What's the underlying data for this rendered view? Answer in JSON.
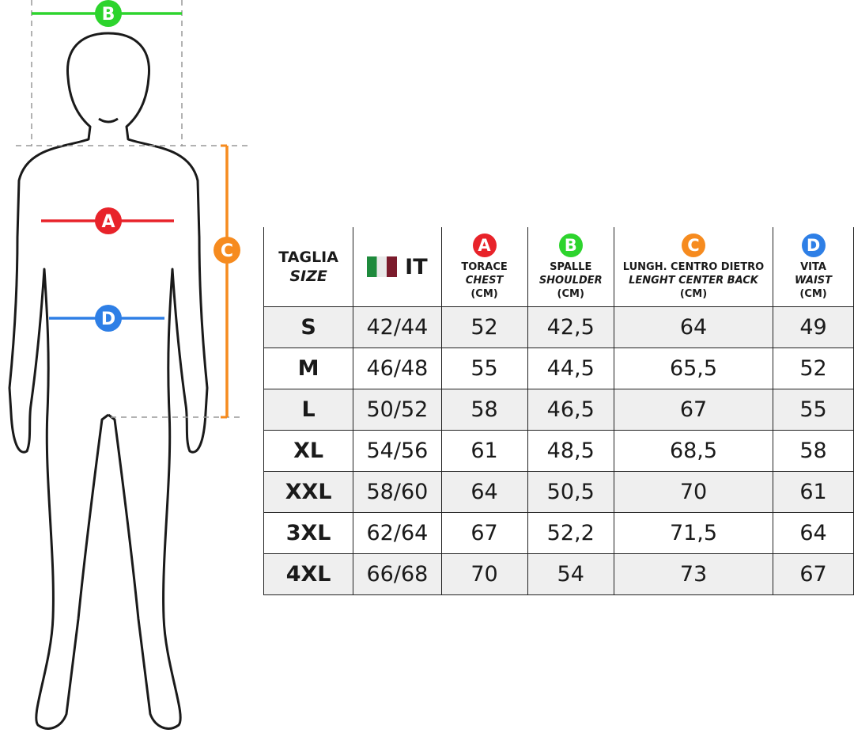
{
  "figure": {
    "markers": [
      {
        "letter": "A",
        "color": "#e8232a"
      },
      {
        "letter": "B",
        "color": "#2dd42d"
      },
      {
        "letter": "C",
        "color": "#f68b1f"
      },
      {
        "letter": "D",
        "color": "#2e7fe6"
      }
    ]
  },
  "table": {
    "header": [
      {
        "label": "TAGLIA",
        "sublabel": "SIZE"
      },
      {
        "label": "IT"
      },
      {
        "marker": "A",
        "label": "TORACE",
        "sublabel": "CHEST",
        "unit": "(CM)"
      },
      {
        "marker": "B",
        "label": "SPALLE",
        "sublabel": "SHOULDER",
        "unit": "(CM)"
      },
      {
        "marker": "C",
        "label": "LUNGH. CENTRO DIETRO",
        "sublabel": "LENGHT CENTER BACK",
        "unit": "(CM)"
      },
      {
        "marker": "D",
        "label": "VITA",
        "sublabel": "WAIST",
        "unit": "(CM)"
      }
    ],
    "rows": [
      [
        "S",
        "42/44",
        "52",
        "42,5",
        "64",
        "49"
      ],
      [
        "M",
        "46/48",
        "55",
        "44,5",
        "65,5",
        "52"
      ],
      [
        "L",
        "50/52",
        "58",
        "46,5",
        "67",
        "55"
      ],
      [
        "XL",
        "54/56",
        "61",
        "48,5",
        "68,5",
        "58"
      ],
      [
        "XXL",
        "58/60",
        "64",
        "50,5",
        "70",
        "61"
      ],
      [
        "3XL",
        "62/64",
        "67",
        "52,2",
        "71,5",
        "64"
      ],
      [
        "4XL",
        "66/68",
        "70",
        "54",
        "73",
        "67"
      ]
    ]
  }
}
